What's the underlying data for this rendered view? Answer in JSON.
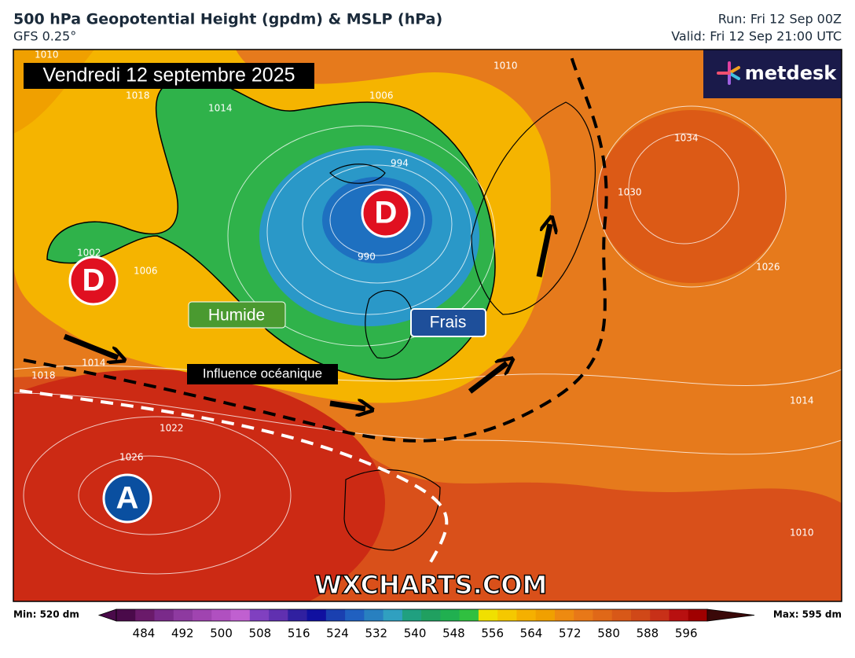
{
  "header": {
    "title": "500 hPa Geopotential Height (gpdm) & MSLP (hPa)",
    "subtitle": "GFS 0.25°",
    "run": "Run: Fri 12 Sep 00Z",
    "valid": "Valid: Fri 12 Sep 21:00 UTC"
  },
  "map": {
    "date_label": "Vendredi 12 septembre 2025",
    "logo": "metdesk",
    "watermark": "WXCHARTS.COM",
    "pressure_centers": [
      {
        "label": "D"
      },
      {
        "label": "D"
      },
      {
        "label": "A"
      }
    ],
    "annotations": [
      "Humide",
      "Frais",
      "Influence océanique"
    ],
    "contour_labels": [
      "1010",
      "1018",
      "1014",
      "1006",
      "1002",
      "1006",
      "994",
      "990",
      "1014",
      "1018",
      "1022",
      "1026",
      "1010",
      "1034",
      "1030",
      "1026",
      "1014",
      "1010"
    ]
  },
  "colorbar": {
    "min_label": "Min: 520 dm",
    "max_label": "Max: 595 dm",
    "ticks": [
      484,
      492,
      500,
      508,
      516,
      524,
      532,
      540,
      548,
      556,
      564,
      572,
      580,
      588,
      596
    ],
    "colors": [
      "#4a0a4a",
      "#6a1a6a",
      "#7a2a8a",
      "#8e3aa0",
      "#a044b0",
      "#b050c0",
      "#c060d0",
      "#8040c0",
      "#6030b0",
      "#3020a0",
      "#1010a0",
      "#1a40b0",
      "#2060c0",
      "#2880c0",
      "#30a0c0",
      "#20a080",
      "#20a060",
      "#20b050",
      "#30c040",
      "#f0e000",
      "#f5c800",
      "#f5b000",
      "#f0a000",
      "#ee8a10",
      "#e87818",
      "#e06818",
      "#d85818",
      "#d04818",
      "#c83018",
      "#b81010",
      "#a00000"
    ]
  }
}
